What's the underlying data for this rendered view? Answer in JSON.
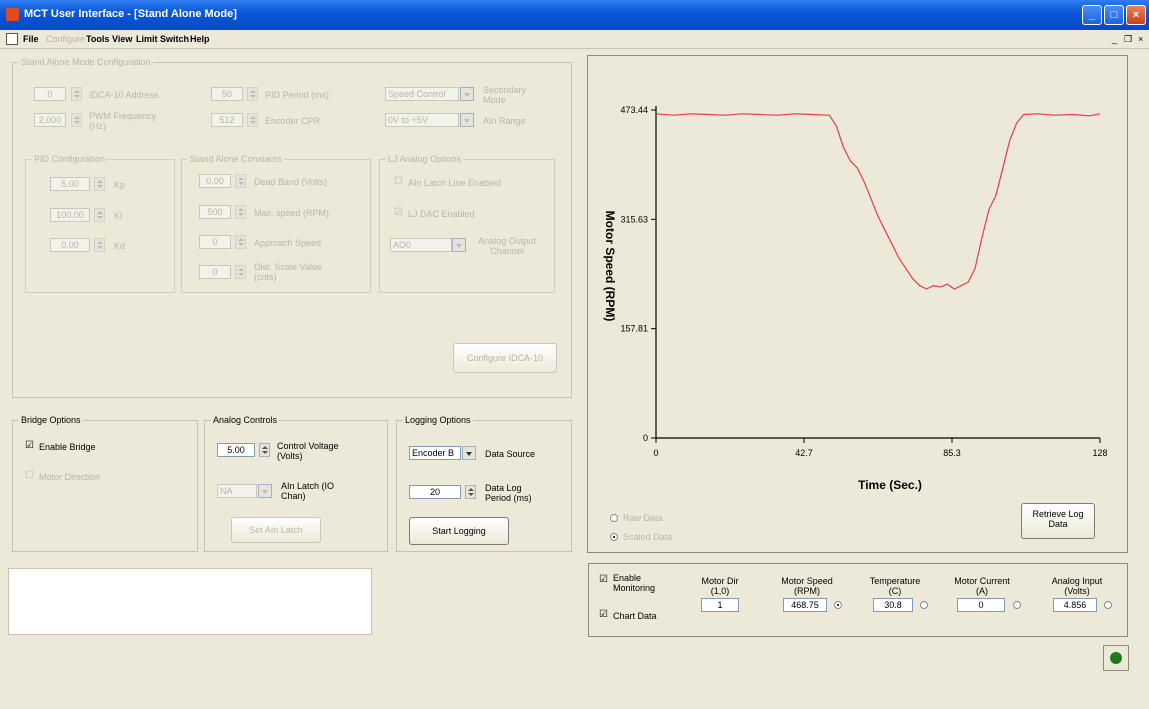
{
  "window": {
    "title": "MCT User Interface - [Stand Alone Mode]",
    "minimize_glyph": "_",
    "maximize_glyph": "□",
    "close_glyph": "×",
    "mdi_minimize": "_",
    "mdi_restore": "❐",
    "mdi_close": "×"
  },
  "menu": {
    "file": "File",
    "configure": "Configure",
    "tools": "Tools",
    "view": "View",
    "limit_switch": "Limit Switch",
    "help": "Help"
  },
  "standalone": {
    "title": "Stand Alone Mode Configuration",
    "idca_address_value": "0",
    "idca_address_label": "IDCA-10 Address",
    "pwm_freq_value": "2,000",
    "pwm_freq_label": "PWM Frequency (Hz)",
    "pid_period_value": "50",
    "pid_period_label": "PID Period (ms)",
    "encoder_cpr_value": "512",
    "encoder_cpr_label": "Encoder CPR",
    "secondary_mode_value": "Speed Control",
    "secondary_mode_label": "Secondary Mode",
    "ain_range_value": "0V to +5V",
    "ain_range_label": "AIn Range",
    "pid": {
      "title": "PID Configuration",
      "kp_value": "5.00",
      "kp_label": "Kp",
      "ki_value": "100.00",
      "ki_label": "Ki",
      "kd_value": "0.00",
      "kd_label": "Kd"
    },
    "constants": {
      "title": "Stand Alone Constants",
      "dead_band_value": "0.00",
      "dead_band_label": "Dead Band (Volts)",
      "max_speed_value": "500",
      "max_speed_label": "Max. speed (RPM)",
      "approach_value": "0",
      "approach_label": "Approach Speed",
      "dist_scale_value": "0",
      "dist_scale_label": "Dist. Scale Value (cnts)"
    },
    "analog": {
      "title": "LJ Analog Options",
      "ain_latch_label": "AIn Latch Line Enabled",
      "lj_dac_label": "LJ DAC Enabled",
      "output_channel_value": "AO0",
      "output_channel_label": "Analog Output Channel"
    },
    "configure_button": "Configure IDCA-10"
  },
  "bridge": {
    "title": "Bridge Options",
    "enable_label": "Enable Bridge",
    "motor_direction_label": "Motor Direction"
  },
  "analog_controls": {
    "title": "Analog Controls",
    "control_voltage_value": "5.00",
    "control_voltage_label": "Control Voltage (Volts)",
    "ain_latch_value": "NA",
    "ain_latch_label": "AIn Latch (IO Chan)",
    "set_button": "Set AIn Latch"
  },
  "logging": {
    "title": "Logging Options",
    "source_value": "Encoder B",
    "source_label": "Data Source",
    "period_value": "20",
    "period_label": "Data Log Period (ms)",
    "start_button": "Start Logging"
  },
  "chart_panel": {
    "raw_label": "Raw Data",
    "scaled_label": "Scaled Data",
    "retrieve_button": "Retrieve Log Data"
  },
  "monitor": {
    "enable_label": "Enable Monitoring",
    "chart_label": "Chart Data",
    "motor_dir_label": "Motor Dir (1,0)",
    "motor_dir_value": "1",
    "motor_speed_label": "Motor Speed (RPM)",
    "motor_speed_value": "468.75",
    "temperature_label": "Temperature (C)",
    "temperature_value": "30.8",
    "current_label": "Motor Current (A)",
    "current_value": "0",
    "analog_input_label": "Analog Input (Volts)",
    "analog_input_value": "4.856"
  },
  "status": {
    "color": "#1f7a1f"
  },
  "chart_data": {
    "type": "line",
    "xlabel": "Time (Sec.)",
    "ylabel": "Motor Speed (RPM)",
    "x_ticks": [
      "0",
      "42.7",
      "85.3",
      "128"
    ],
    "y_ticks": [
      "0",
      "157.81",
      "315.63",
      "473.44"
    ],
    "xlim": [
      0,
      128
    ],
    "ylim": [
      0,
      473.44
    ],
    "line_color": "#e04040",
    "grid": false,
    "x": [
      0,
      5,
      10,
      15,
      20,
      25,
      30,
      35,
      40,
      45,
      50,
      52,
      54,
      56,
      58,
      60,
      62,
      64,
      66,
      68,
      70,
      72,
      74,
      76,
      78,
      80,
      82,
      84,
      86,
      88,
      90,
      92,
      94,
      96,
      98,
      100,
      102,
      104,
      106,
      110,
      115,
      120,
      125,
      128
    ],
    "y": [
      468,
      466,
      468,
      467,
      466,
      468,
      467,
      466,
      468,
      467,
      466,
      450,
      420,
      400,
      390,
      370,
      345,
      320,
      300,
      280,
      260,
      245,
      230,
      220,
      215,
      220,
      218,
      222,
      215,
      220,
      225,
      245,
      290,
      330,
      350,
      390,
      430,
      455,
      467,
      468,
      466,
      467,
      465,
      468
    ]
  }
}
